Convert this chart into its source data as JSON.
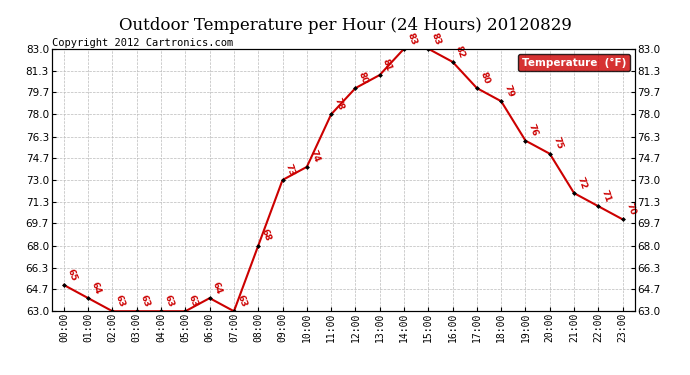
{
  "title": "Outdoor Temperature per Hour (24 Hours) 20120829",
  "copyright_text": "Copyright 2012 Cartronics.com",
  "legend_label": "Temperature  (°F)",
  "hours": [
    "00:00",
    "01:00",
    "02:00",
    "03:00",
    "04:00",
    "05:00",
    "06:00",
    "07:00",
    "08:00",
    "09:00",
    "10:00",
    "11:00",
    "12:00",
    "13:00",
    "14:00",
    "15:00",
    "16:00",
    "17:00",
    "18:00",
    "19:00",
    "20:00",
    "21:00",
    "22:00",
    "23:00"
  ],
  "temps": [
    65,
    64,
    63,
    63,
    63,
    63,
    64,
    63,
    68,
    73,
    74,
    78,
    80,
    81,
    83,
    83,
    82,
    80,
    79,
    76,
    75,
    72,
    71,
    70
  ],
  "ylim": [
    63.0,
    83.0
  ],
  "yticks": [
    63.0,
    64.7,
    66.3,
    68.0,
    69.7,
    71.3,
    73.0,
    74.7,
    76.3,
    78.0,
    79.7,
    81.3,
    83.0
  ],
  "ytick_labels": [
    "63.0",
    "64.7",
    "66.3",
    "68.0",
    "69.7",
    "71.3",
    "73.0",
    "74.7",
    "76.3",
    "78.0",
    "79.7",
    "81.3",
    "83.0"
  ],
  "line_color": "#cc0000",
  "marker_color": "#000000",
  "label_color": "#cc0000",
  "title_fontsize": 12,
  "copyright_fontsize": 7.5,
  "legend_bg": "#cc0000",
  "legend_text_color": "#ffffff",
  "background_color": "#ffffff",
  "grid_color": "#bbbbbb"
}
